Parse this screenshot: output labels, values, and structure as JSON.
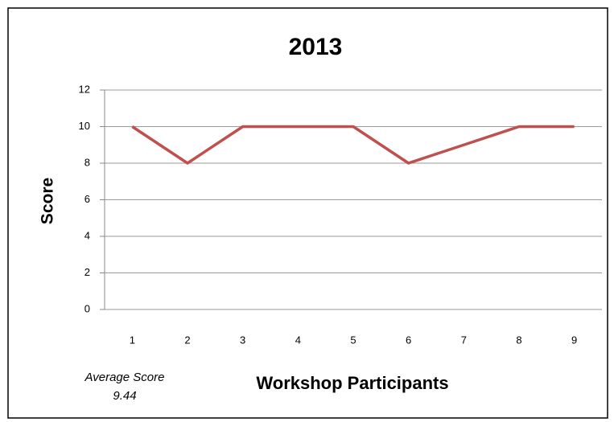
{
  "chart_data": {
    "type": "line",
    "title": "2013",
    "x_label": "Workshop Participants",
    "y_label": "Score",
    "categories": [
      "1",
      "2",
      "3",
      "4",
      "5",
      "6",
      "7",
      "8",
      "9"
    ],
    "values": [
      10,
      8,
      10,
      10,
      10,
      8,
      9,
      10,
      10
    ],
    "color": "#c0504d",
    "ylim": [
      0,
      12
    ],
    "yticks": [
      0,
      2,
      4,
      6,
      8,
      10,
      12
    ],
    "grid": true,
    "annotation": {
      "label": "Average Score",
      "value": 9.44
    }
  }
}
